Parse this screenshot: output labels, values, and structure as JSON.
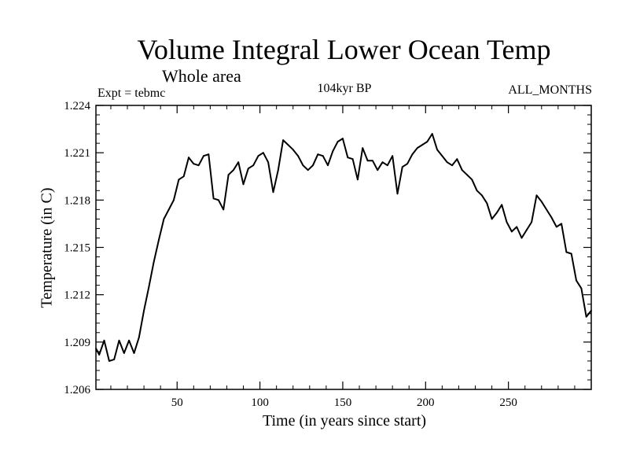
{
  "chart_data": {
    "type": "line",
    "title": "Volume Integral Lower Ocean Temp",
    "subtitle": "Whole area",
    "experiment_label": "Expt = tebmc",
    "period_label": "104kyr BP",
    "season_label": "ALL_MONTHS",
    "xlabel": "Time (in years since start)",
    "ylabel": "Temperature (in C)",
    "xlim": [
      1,
      300
    ],
    "ylim": [
      1.206,
      1.224
    ],
    "xticks": [
      50,
      100,
      150,
      200,
      250
    ],
    "xtick_labels": [
      "50",
      "100",
      "150",
      "200",
      "250"
    ],
    "yticks": [
      1.206,
      1.209,
      1.212,
      1.215,
      1.218,
      1.221,
      1.224
    ],
    "ytick_labels": [
      "1.206",
      "1.209",
      "1.212",
      "1.215",
      "1.218",
      "1.221",
      "1.224"
    ],
    "series": [
      {
        "name": "Volume Integral Lower Ocean Temp",
        "x": [
          1,
          3,
          6,
          9,
          12,
          15,
          18,
          21,
          24,
          27,
          30,
          33,
          36,
          39,
          42,
          45,
          48,
          51,
          54,
          57,
          60,
          63,
          66,
          69,
          72,
          75,
          78,
          81,
          84,
          87,
          90,
          93,
          96,
          99,
          102,
          105,
          108,
          111,
          114,
          117,
          120,
          123,
          126,
          129,
          132,
          135,
          138,
          141,
          144,
          147,
          150,
          153,
          156,
          159,
          162,
          165,
          168,
          171,
          174,
          177,
          180,
          183,
          186,
          189,
          192,
          195,
          198,
          201,
          204,
          207,
          210,
          213,
          216,
          219,
          222,
          225,
          228,
          231,
          234,
          237,
          240,
          243,
          246,
          249,
          252,
          255,
          258,
          261,
          264,
          267,
          270,
          273,
          276,
          279,
          282,
          285,
          288,
          291,
          294,
          297,
          300
        ],
        "y": [
          1.2086,
          1.2082,
          1.2091,
          1.2078,
          1.2079,
          1.2091,
          1.2083,
          1.2091,
          1.2083,
          1.2093,
          1.211,
          1.2125,
          1.2141,
          1.2155,
          1.2168,
          1.2174,
          1.218,
          1.2193,
          1.2195,
          1.2207,
          1.2203,
          1.2202,
          1.2208,
          1.2209,
          1.2181,
          1.218,
          1.2174,
          1.2196,
          1.2199,
          1.2204,
          1.219,
          1.22,
          1.2202,
          1.2208,
          1.221,
          1.2204,
          1.2185,
          1.2199,
          1.2218,
          1.2215,
          1.2212,
          1.2208,
          1.2202,
          1.2199,
          1.2202,
          1.2209,
          1.2208,
          1.2202,
          1.2211,
          1.2217,
          1.2219,
          1.2207,
          1.2206,
          1.2193,
          1.2213,
          1.2205,
          1.2205,
          1.2199,
          1.2204,
          1.2202,
          1.2208,
          1.2184,
          1.2201,
          1.2203,
          1.2209,
          1.2213,
          1.2215,
          1.2217,
          1.2222,
          1.2212,
          1.2208,
          1.2204,
          1.2202,
          1.2206,
          1.2199,
          1.2196,
          1.2193,
          1.2186,
          1.2183,
          1.2178,
          1.2168,
          1.2172,
          1.2177,
          1.2166,
          1.216,
          1.2163,
          1.2156,
          1.2161,
          1.2166,
          1.2183,
          1.2179,
          1.2174,
          1.2169,
          1.2163,
          1.2165,
          1.2147,
          1.2146,
          1.2129,
          1.2124,
          1.2106,
          1.211
        ]
      }
    ]
  }
}
